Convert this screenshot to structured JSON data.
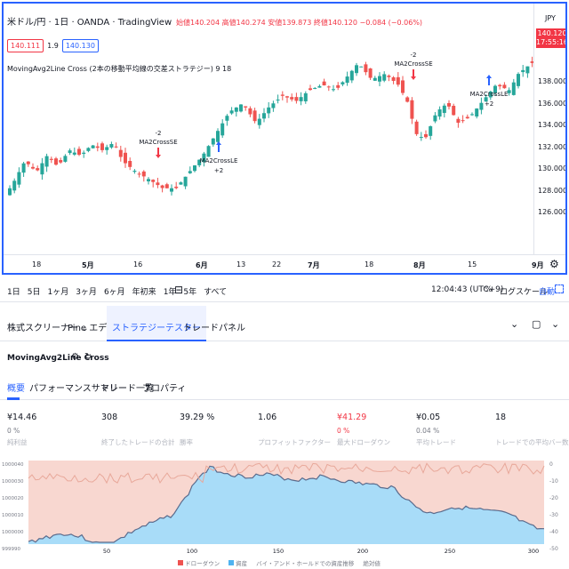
{
  "header": {
    "symbol": "米ドル/円 · 1日 · OANDA · TradingView",
    "ohlc": "始値140.204 高値140.274 安値139.873 終値140.120 −0.084 (−0.06%)",
    "bid": "140.111",
    "spread": "1.9",
    "ask": "140.130",
    "strategy": "MovingAvg2Line Cross (2本の移動平均線の交差ストラテジー) 9 18",
    "currency": "JPY",
    "last_price": "140.120",
    "countdown": "17:55:16"
  },
  "y_axis": [
    "138.000",
    "136.000",
    "134.000",
    "132.000",
    "130.000",
    "128.000",
    "126.000"
  ],
  "x_axis": [
    "18",
    "5月",
    "16",
    "6月",
    "13",
    "22",
    "7月",
    "18",
    "8月",
    "15",
    "9月"
  ],
  "signals": [
    {
      "top": "-2",
      "bottom": "MA2CrossSE"
    },
    {
      "top": "MA2CrossLE",
      "bottom": "+2"
    },
    {
      "top": "-2",
      "bottom": "MA2CrossSE"
    },
    {
      "top": "MA2CrossLE",
      "bottom": "+2"
    }
  ],
  "toolbar": {
    "ranges": [
      "1日",
      "5日",
      "1ヶ月",
      "3ヶ月",
      "6ヶ月",
      "年初来",
      "1年",
      "5年",
      "すべて"
    ],
    "time": "12:04:43 (UTC+9)",
    "pct": "%",
    "log": "ログスケール",
    "auto": "自動"
  },
  "panel_tabs": [
    "株式スクリーナー",
    "Pine エディタ",
    "ストラテジーテスター",
    "トレードパネル"
  ],
  "panel": {
    "strategy_name": "MovingAvg2Line Cross",
    "subtabs": [
      "概要",
      "パフォーマンスサマリー",
      "トレード一覧",
      "プロパティ"
    ],
    "metrics": [
      {
        "value": "¥14.46",
        "sub": "0 %",
        "label": "純利益"
      },
      {
        "value": "308",
        "sub": "",
        "label": "終了したトレードの合計"
      },
      {
        "value": "39.29 %",
        "sub": "",
        "label": "勝率"
      },
      {
        "value": "1.06",
        "sub": "",
        "label": "プロフィットファクター"
      },
      {
        "value": "¥41.29",
        "sub": "0 %",
        "label": "最大ドローダウン"
      },
      {
        "value": "¥0.05",
        "sub": "0.04 %",
        "label": "平均トレード"
      },
      {
        "value": "18",
        "sub": "",
        "label": "トレードでの平均バー数"
      }
    ],
    "equity_left_axis": [
      "1000040",
      "1000030",
      "1000020",
      "1000010",
      "1000000",
      "999990"
    ],
    "equity_right_axis": [
      "0",
      "-10",
      "-20",
      "-30",
      "-40",
      "-50"
    ],
    "equity_x_axis": [
      "50",
      "100",
      "150",
      "200",
      "250",
      "300"
    ],
    "legend": [
      "ドローダウン",
      "資産",
      "バイ・アンド・ホールドでの資産推移",
      "絶対値"
    ]
  },
  "colors": {
    "up": "#26a69a",
    "down": "#ef5350",
    "accent": "#2962ff",
    "dd_fill": "#f8d7d0",
    "eq_fill": "#a8dcf8"
  }
}
